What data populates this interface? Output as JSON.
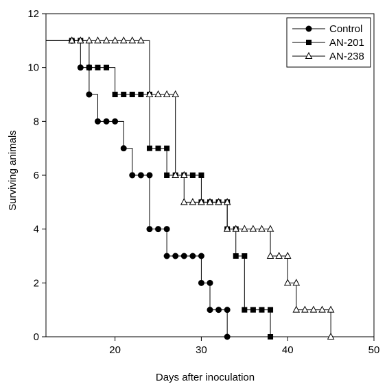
{
  "chart_data": {
    "type": "line",
    "title": "",
    "xlabel": "Days after inoculation",
    "ylabel": "Surviving animals",
    "xlim": [
      12,
      50
    ],
    "ylim": [
      0,
      12
    ],
    "xticks": [
      20,
      30,
      40,
      50
    ],
    "yticks": [
      0,
      2,
      4,
      6,
      8,
      10,
      12
    ],
    "grid": false,
    "legend_position": "top-right",
    "step": true,
    "x_start": 12,
    "series": [
      {
        "name": "Control",
        "marker": "filled-circle",
        "color": "#000000",
        "points": [
          [
            15,
            11
          ],
          [
            16,
            10
          ],
          [
            17,
            10
          ],
          [
            17,
            9
          ],
          [
            18,
            8
          ],
          [
            19,
            8
          ],
          [
            20,
            8
          ],
          [
            21,
            7
          ],
          [
            22,
            6
          ],
          [
            23,
            6
          ],
          [
            24,
            6
          ],
          [
            24,
            4
          ],
          [
            25,
            4
          ],
          [
            26,
            4
          ],
          [
            26,
            3
          ],
          [
            27,
            3
          ],
          [
            28,
            3
          ],
          [
            29,
            3
          ],
          [
            30,
            3
          ],
          [
            30,
            2
          ],
          [
            31,
            2
          ],
          [
            31,
            1
          ],
          [
            32,
            1
          ],
          [
            33,
            1
          ],
          [
            33,
            0
          ]
        ]
      },
      {
        "name": "AN-201",
        "marker": "filled-square",
        "color": "#000000",
        "points": [
          [
            15,
            11
          ],
          [
            16,
            11
          ],
          [
            17,
            10
          ],
          [
            18,
            10
          ],
          [
            19,
            10
          ],
          [
            20,
            9
          ],
          [
            21,
            9
          ],
          [
            22,
            9
          ],
          [
            23,
            9
          ],
          [
            24,
            9
          ],
          [
            24,
            7
          ],
          [
            25,
            7
          ],
          [
            26,
            7
          ],
          [
            26,
            6
          ],
          [
            27,
            6
          ],
          [
            28,
            6
          ],
          [
            29,
            6
          ],
          [
            30,
            6
          ],
          [
            30,
            5
          ],
          [
            31,
            5
          ],
          [
            32,
            5
          ],
          [
            33,
            5
          ],
          [
            33,
            4
          ],
          [
            34,
            4
          ],
          [
            34,
            3
          ],
          [
            35,
            3
          ],
          [
            35,
            1
          ],
          [
            36,
            1
          ],
          [
            37,
            1
          ],
          [
            38,
            1
          ],
          [
            38,
            0
          ]
        ]
      },
      {
        "name": "AN-238",
        "marker": "open-triangle",
        "color": "#000000",
        "points": [
          [
            15,
            11
          ],
          [
            16,
            11
          ],
          [
            17,
            11
          ],
          [
            18,
            11
          ],
          [
            19,
            11
          ],
          [
            20,
            11
          ],
          [
            21,
            11
          ],
          [
            22,
            11
          ],
          [
            23,
            11
          ],
          [
            24,
            9
          ],
          [
            25,
            9
          ],
          [
            26,
            9
          ],
          [
            27,
            9
          ],
          [
            27,
            6
          ],
          [
            28,
            6
          ],
          [
            28,
            5
          ],
          [
            29,
            5
          ],
          [
            30,
            5
          ],
          [
            31,
            5
          ],
          [
            32,
            5
          ],
          [
            33,
            5
          ],
          [
            33,
            4
          ],
          [
            34,
            4
          ],
          [
            35,
            4
          ],
          [
            36,
            4
          ],
          [
            37,
            4
          ],
          [
            38,
            4
          ],
          [
            38,
            3
          ],
          [
            39,
            3
          ],
          [
            40,
            3
          ],
          [
            40,
            2
          ],
          [
            41,
            2
          ],
          [
            41,
            1
          ],
          [
            42,
            1
          ],
          [
            43,
            1
          ],
          [
            44,
            1
          ],
          [
            45,
            1
          ],
          [
            45,
            0
          ]
        ]
      }
    ]
  }
}
